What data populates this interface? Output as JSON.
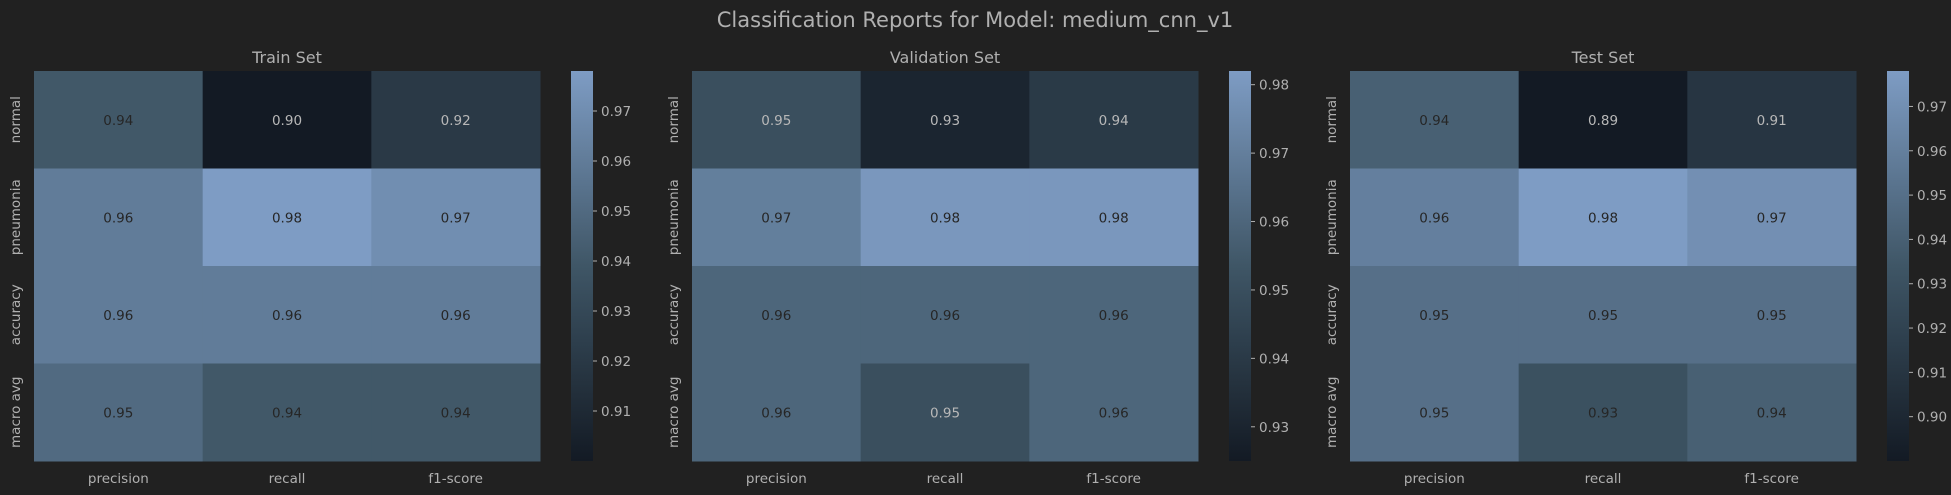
{
  "figure_title": "Classification Reports for Model: medium_cnn_v1",
  "colors": {
    "background": "#212121",
    "text": "#b0b0b0",
    "cell_text_dark": "#262626",
    "cell_text_light": "#b8b8b8",
    "cmap_low": "#131a24",
    "cmap_mid": "#3f5666",
    "cmap_high": "#7e9cc4"
  },
  "chart_data": [
    {
      "type": "heatmap",
      "title": "Train Set",
      "rows": [
        "normal",
        "pneumonia",
        "accuracy",
        "macro avg"
      ],
      "columns": [
        "precision",
        "recall",
        "f1-score"
      ],
      "values": [
        [
          0.94,
          0.9,
          0.92
        ],
        [
          0.96,
          0.98,
          0.97
        ],
        [
          0.96,
          0.96,
          0.96
        ],
        [
          0.95,
          0.94,
          0.94
        ]
      ],
      "colorbar": {
        "vmin": 0.9,
        "vmax": 0.978,
        "ticks": [
          0.91,
          0.92,
          0.93,
          0.94,
          0.95,
          0.96,
          0.97
        ]
      }
    },
    {
      "type": "heatmap",
      "title": "Validation Set",
      "rows": [
        "normal",
        "pneumonia",
        "accuracy",
        "macro avg"
      ],
      "columns": [
        "precision",
        "recall",
        "f1-score"
      ],
      "values": [
        [
          0.95,
          0.93,
          0.94
        ],
        [
          0.97,
          0.98,
          0.98
        ],
        [
          0.96,
          0.96,
          0.96
        ],
        [
          0.96,
          0.95,
          0.96
        ]
      ],
      "colorbar": {
        "vmin": 0.925,
        "vmax": 0.982,
        "ticks": [
          0.93,
          0.94,
          0.95,
          0.96,
          0.97,
          0.98
        ]
      }
    },
    {
      "type": "heatmap",
      "title": "Test Set",
      "rows": [
        "normal",
        "pneumonia",
        "accuracy",
        "macro avg"
      ],
      "columns": [
        "precision",
        "recall",
        "f1-score"
      ],
      "values": [
        [
          0.94,
          0.89,
          0.91
        ],
        [
          0.96,
          0.98,
          0.97
        ],
        [
          0.95,
          0.95,
          0.95
        ],
        [
          0.95,
          0.93,
          0.94
        ]
      ],
      "colorbar": {
        "vmin": 0.89,
        "vmax": 0.978,
        "ticks": [
          0.9,
          0.91,
          0.92,
          0.93,
          0.94,
          0.95,
          0.96,
          0.97
        ]
      }
    }
  ]
}
